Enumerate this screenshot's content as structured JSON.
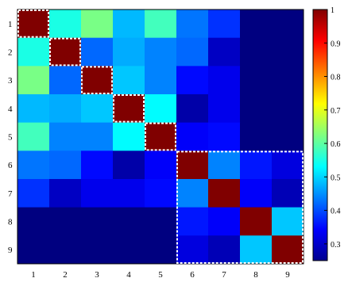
{
  "chart_data": {
    "type": "heatmap",
    "title": "",
    "xlabel": "",
    "ylabel": "",
    "x_labels": [
      "1",
      "2",
      "3",
      "4",
      "5",
      "6",
      "7",
      "8",
      "9"
    ],
    "y_labels": [
      "1",
      "2",
      "3",
      "4",
      "5",
      "6",
      "7",
      "8",
      "9"
    ],
    "matrix": [
      [
        1.0,
        0.55,
        0.62,
        0.48,
        0.58,
        0.43,
        0.38,
        0.25,
        0.25
      ],
      [
        0.55,
        1.0,
        0.42,
        0.47,
        0.44,
        0.42,
        0.3,
        0.25,
        0.25
      ],
      [
        0.62,
        0.42,
        1.0,
        0.49,
        0.44,
        0.35,
        0.33,
        0.25,
        0.25
      ],
      [
        0.48,
        0.47,
        0.49,
        1.0,
        0.53,
        0.28,
        0.33,
        0.25,
        0.25
      ],
      [
        0.58,
        0.44,
        0.44,
        0.53,
        1.0,
        0.34,
        0.35,
        0.25,
        0.25
      ],
      [
        0.43,
        0.42,
        0.35,
        0.28,
        0.34,
        1.0,
        0.44,
        0.36,
        0.32
      ],
      [
        0.38,
        0.3,
        0.33,
        0.33,
        0.35,
        0.44,
        1.0,
        0.34,
        0.29
      ],
      [
        0.25,
        0.25,
        0.25,
        0.25,
        0.25,
        0.36,
        0.34,
        1.0,
        0.49
      ],
      [
        0.25,
        0.25,
        0.25,
        0.25,
        0.25,
        0.32,
        0.29,
        0.49,
        1.0
      ]
    ],
    "highlight_blocks": [
      {
        "rows": [
          1,
          1
        ],
        "cols": [
          1,
          1
        ]
      },
      {
        "rows": [
          2,
          2
        ],
        "cols": [
          2,
          2
        ]
      },
      {
        "rows": [
          3,
          3
        ],
        "cols": [
          3,
          3
        ]
      },
      {
        "rows": [
          4,
          4
        ],
        "cols": [
          4,
          4
        ]
      },
      {
        "rows": [
          5,
          5
        ],
        "cols": [
          5,
          5
        ]
      },
      {
        "rows": [
          6,
          9
        ],
        "cols": [
          6,
          9
        ]
      }
    ],
    "colorbar": {
      "colormap": "jet",
      "range": [
        0.25,
        1.0
      ],
      "ticks": [
        "0.3",
        "0.4",
        "0.5",
        "0.6",
        "0.7",
        "0.8",
        "0.9",
        "1"
      ],
      "tick_values": [
        0.3,
        0.4,
        0.5,
        0.6,
        0.7,
        0.8,
        0.9,
        1.0
      ]
    },
    "grid": false,
    "legend": "none"
  }
}
